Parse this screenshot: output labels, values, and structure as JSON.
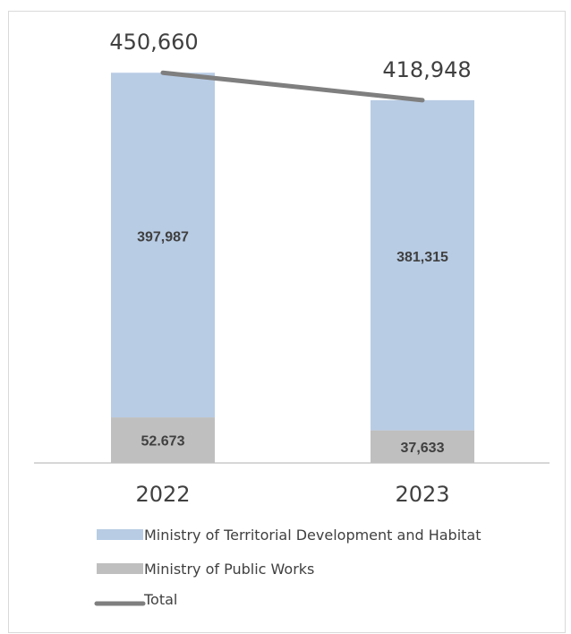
{
  "chart_data": {
    "type": "bar",
    "stacked": true,
    "title": "",
    "xlabel": "",
    "ylabel": "",
    "categories": [
      "2022",
      "2023"
    ],
    "series": [
      {
        "name": "Ministry of Public Works",
        "values": [
          52673,
          37633
        ],
        "labels": [
          "52.673",
          "37,633"
        ],
        "color": "#bfbfbf"
      },
      {
        "name": "Ministry of Territorial Development and Habitat",
        "values": [
          397987,
          381315
        ],
        "labels": [
          "397,987",
          "381,315"
        ],
        "color": "#b8cce4"
      }
    ],
    "line_series": {
      "name": "Total",
      "values": [
        450660,
        418948
      ],
      "labels": [
        "450,660",
        "418,948"
      ],
      "color": "#7f7f7f"
    },
    "ylim": [
      0,
      470000
    ],
    "grid": false,
    "legend": {
      "position": "bottom",
      "entries": [
        "Ministry of Territorial Development and Habitat",
        "Ministry of Public Works",
        "Total"
      ]
    }
  }
}
